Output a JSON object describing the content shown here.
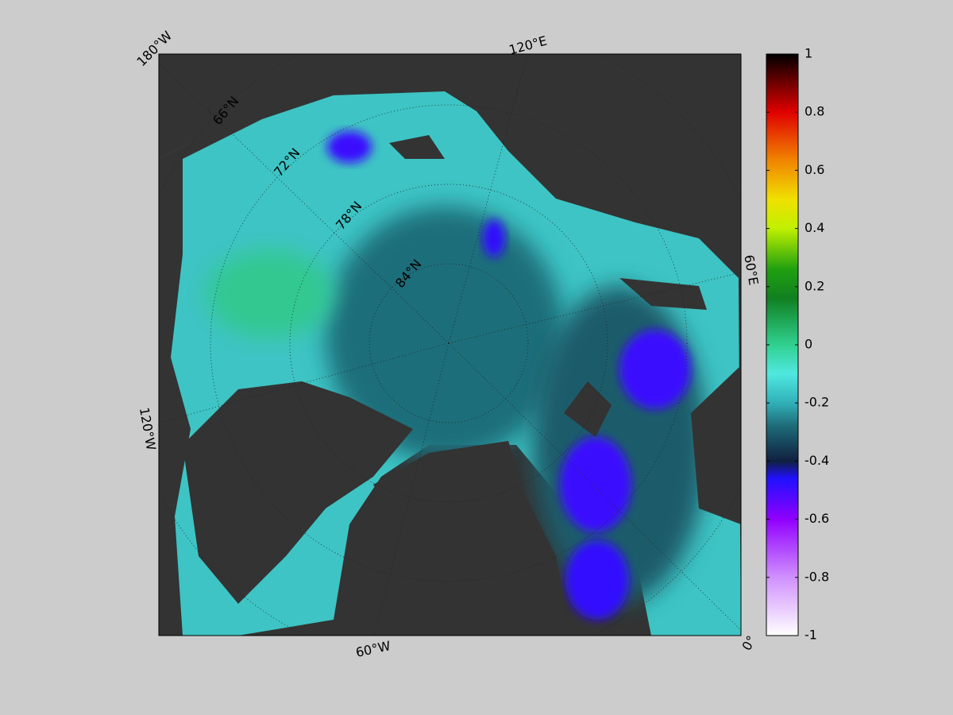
{
  "map": {
    "longitude_labels": [
      "180°W",
      "120°E",
      "60°E",
      "0°",
      "60°W",
      "120°W"
    ],
    "latitude_labels": [
      "66°N",
      "72°N",
      "78°N",
      "84°N"
    ]
  },
  "colorbar": {
    "lim": [
      -1,
      1
    ],
    "ticks": [
      -1,
      -0.8,
      -0.6,
      -0.4,
      -0.2,
      0,
      0.2,
      0.4,
      0.6,
      0.8,
      1
    ]
  }
}
